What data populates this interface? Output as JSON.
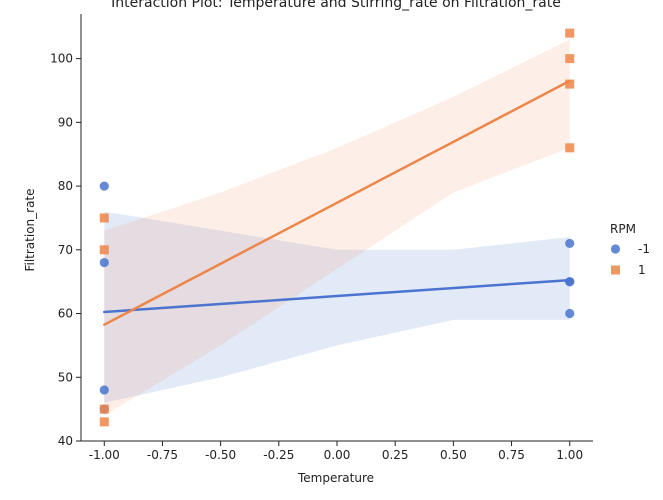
{
  "chart_data": {
    "type": "scatter",
    "title": "Interaction Plot: Temperature and Stirring_rate on Filtration_rate",
    "xlabel": "Temperature",
    "ylabel": "Filtration_rate",
    "xlim": [
      -1.1,
      1.1
    ],
    "ylim": [
      40,
      107
    ],
    "xticks": [
      "-1.00",
      "-0.75",
      "-0.50",
      "-0.25",
      "0.00",
      "0.25",
      "0.50",
      "0.75",
      "1.00"
    ],
    "xtick_values": [
      -1.0,
      -0.75,
      -0.5,
      -0.25,
      0.0,
      0.25,
      0.5,
      0.75,
      1.0
    ],
    "yticks": [
      "40",
      "50",
      "60",
      "70",
      "80",
      "90",
      "100"
    ],
    "ytick_values": [
      40,
      50,
      60,
      70,
      80,
      90,
      100
    ],
    "grid": false,
    "legend": {
      "title": "RPM",
      "placement": "right"
    },
    "series": [
      {
        "name": "-1",
        "marker": "circle",
        "color": "#4a74cf",
        "band_color": "#4a74cf",
        "x": [
          -1,
          -1,
          -1,
          -1,
          1,
          1,
          1,
          1
        ],
        "y": [
          45,
          48,
          68,
          80,
          60,
          65,
          65,
          71
        ],
        "fit": {
          "x": [
            -1,
            1
          ],
          "y": [
            60.25,
            65.25
          ]
        },
        "ci": {
          "x": [
            -1,
            -0.5,
            0,
            0.5,
            1
          ],
          "lower": [
            46,
            50,
            55,
            59,
            59
          ],
          "upper": [
            76,
            73,
            70,
            70,
            72
          ]
        }
      },
      {
        "name": "1",
        "marker": "square",
        "color": "#ee8549",
        "band_color": "#f39c6b",
        "x": [
          -1,
          -1,
          -1,
          -1,
          1,
          1,
          1,
          1
        ],
        "y": [
          43,
          45,
          70,
          75,
          86,
          96,
          100,
          104
        ],
        "fit": {
          "x": [
            -1,
            1
          ],
          "y": [
            58.25,
            96.5
          ]
        },
        "ci": {
          "x": [
            -1,
            -0.5,
            0,
            0.5,
            1
          ],
          "lower": [
            44,
            55,
            67,
            79,
            86
          ],
          "upper": [
            73,
            79,
            86,
            94,
            103
          ]
        }
      }
    ]
  }
}
